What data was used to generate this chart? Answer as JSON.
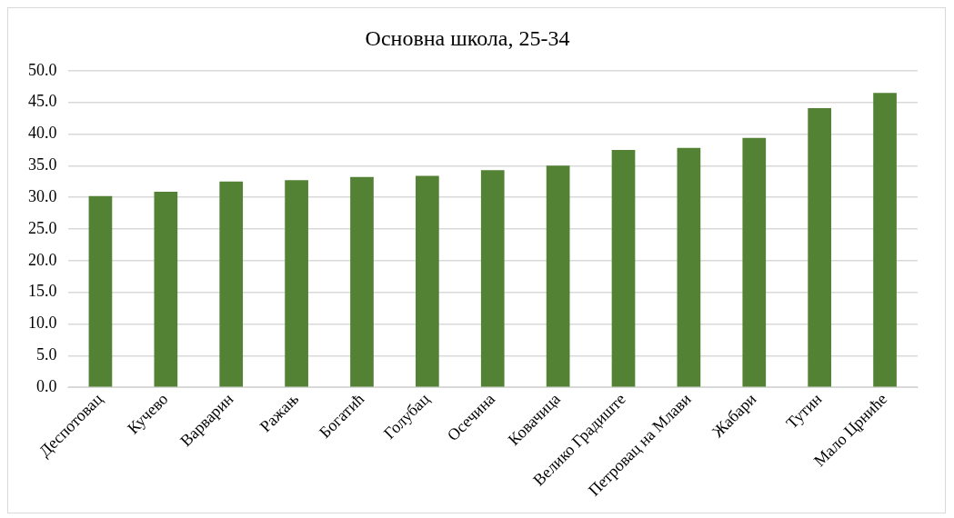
{
  "chart_data": {
    "type": "bar",
    "title": "Основна школа, 25-34",
    "categories": [
      "Деспотовац",
      "Кучево",
      "Варварин",
      "Ражањ",
      "Богатић",
      "Голубац",
      "Осечина",
      "Ковачица",
      "Велико Градиште",
      "Петровац на Млави",
      "Жабари",
      "Тутин",
      "Мало Црниће"
    ],
    "values": [
      30.2,
      30.9,
      32.5,
      32.7,
      33.2,
      33.4,
      34.3,
      35.0,
      37.5,
      37.8,
      39.4,
      44.1,
      46.5
    ],
    "color": "#548235",
    "ylim": [
      0,
      50
    ],
    "yticks": [
      {
        "value": 0,
        "label": "0.0"
      },
      {
        "value": 5,
        "label": "5.0"
      },
      {
        "value": 10,
        "label": "10.0"
      },
      {
        "value": 15,
        "label": "15.0"
      },
      {
        "value": 20,
        "label": "20.0"
      },
      {
        "value": 25,
        "label": "25.0"
      },
      {
        "value": 30,
        "label": "30.0"
      },
      {
        "value": 35,
        "label": "35.0"
      },
      {
        "value": 40,
        "label": "40.0"
      },
      {
        "value": 45,
        "label": "45.0"
      },
      {
        "value": 50,
        "label": "50.0"
      }
    ],
    "grid": "y"
  }
}
